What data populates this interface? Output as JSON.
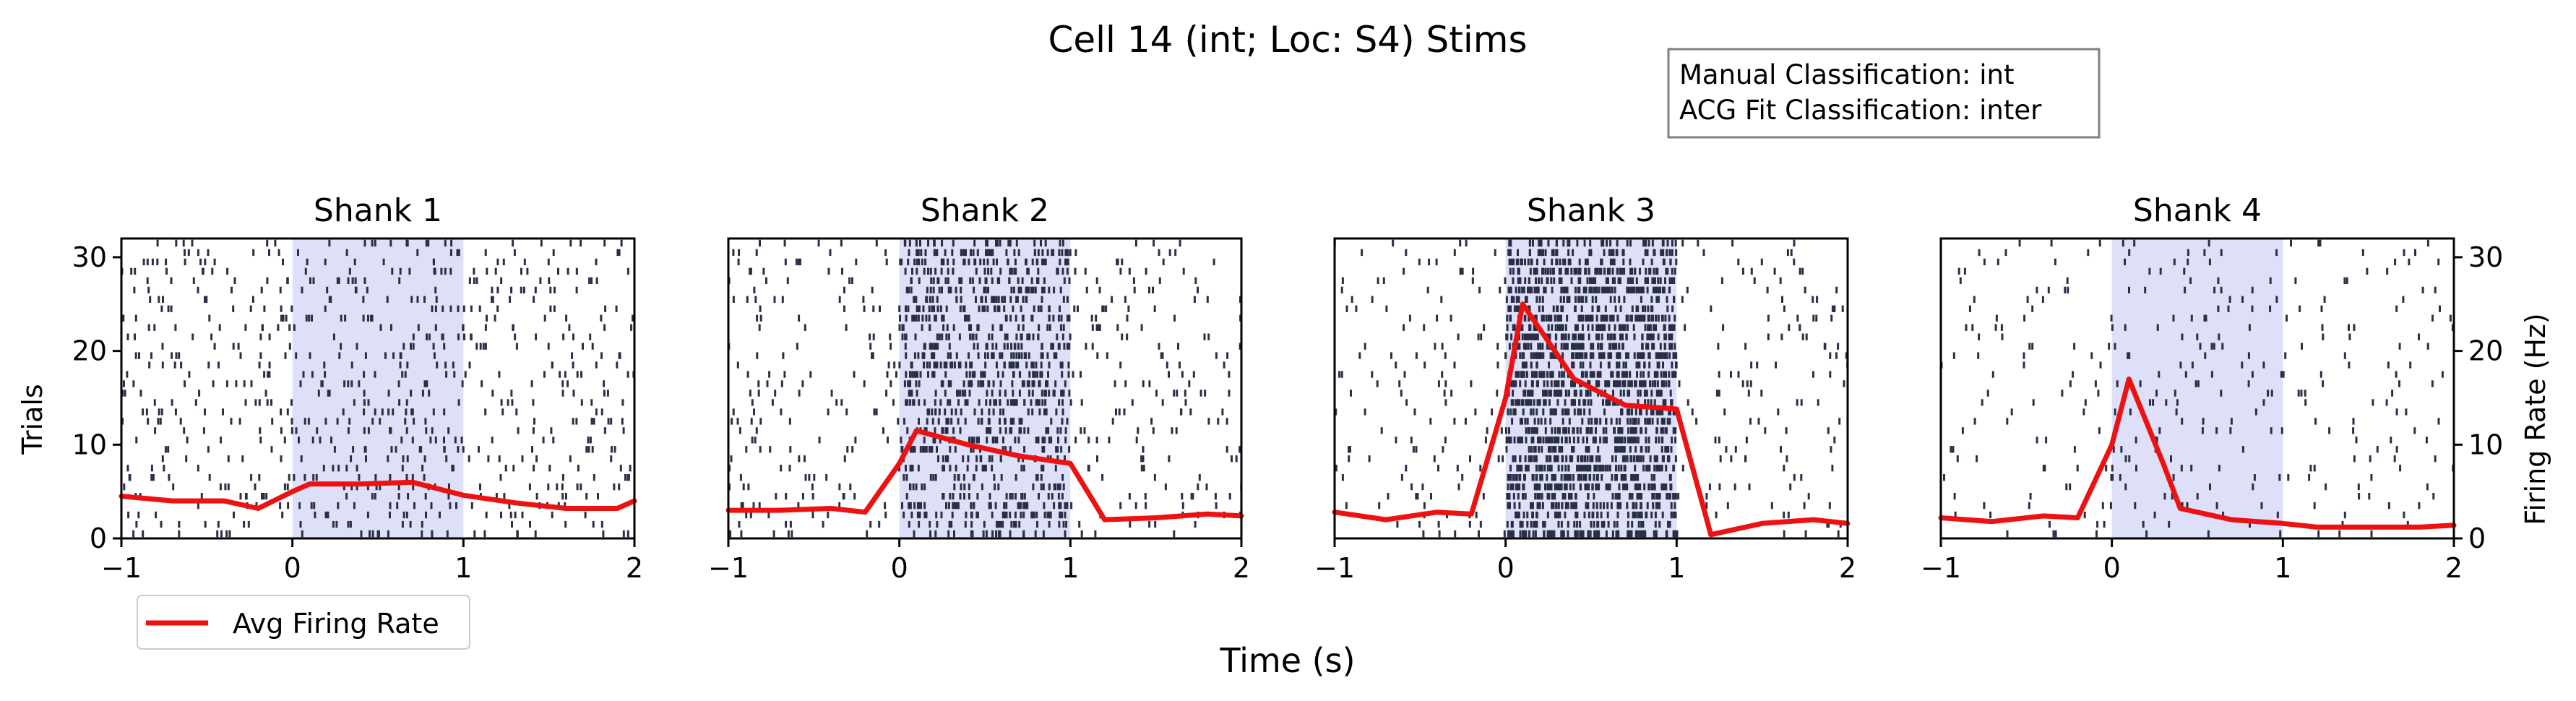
{
  "figure": {
    "title": "Cell 14 (int; Loc: S4) Stims",
    "xlabel": "Time (s)",
    "ylabel_left": "Trials",
    "ylabel_right": "Firing Rate (Hz)",
    "info_box": {
      "line1": "Manual Classification: int",
      "line2": "ACG Fit Classification: inter"
    },
    "legend": {
      "label": "Avg Firing Rate",
      "color": "#ee1111",
      "placement": "below-left"
    }
  },
  "colors": {
    "raster": "#2b2f45",
    "stim_shade": "#dde0f8",
    "rate_line": "#ee1111"
  },
  "chart_data": {
    "type": "raster+line",
    "xlim": [
      -1,
      2
    ],
    "ylim_trials": [
      0,
      32
    ],
    "ylim_rate": [
      0,
      32
    ],
    "xticks": [
      "−1",
      "0",
      "1",
      "2"
    ],
    "yticks": [
      "0",
      "10",
      "20",
      "30"
    ],
    "n_trials": 32,
    "panels": [
      {
        "title": "Shank 1",
        "stim_window": [
          0,
          1
        ],
        "background_rate": 7,
        "stim_rate": 9,
        "rate_x": [
          -1,
          -0.7,
          -0.4,
          -0.2,
          0,
          0.1,
          0.4,
          0.7,
          1,
          1.3,
          1.6,
          1.9,
          2
        ],
        "rate_y": [
          4.5,
          4.0,
          4.0,
          3.2,
          5.0,
          5.8,
          5.8,
          6.0,
          4.6,
          3.8,
          3.2,
          3.2,
          4.0
        ]
      },
      {
        "title": "Shank 2",
        "stim_window": [
          0,
          1
        ],
        "background_rate": 5,
        "stim_rate": 30,
        "rate_x": [
          -1,
          -0.7,
          -0.4,
          -0.2,
          0,
          0.1,
          0.4,
          0.7,
          1,
          1.2,
          1.5,
          1.8,
          2
        ],
        "rate_y": [
          3.0,
          3.0,
          3.2,
          2.8,
          8.0,
          11.5,
          10.0,
          8.8,
          8.0,
          2.0,
          2.2,
          2.6,
          2.4
        ]
      },
      {
        "title": "Shank 3",
        "stim_window": [
          0,
          1
        ],
        "background_rate": 4,
        "stim_rate": 60,
        "rate_x": [
          -1,
          -0.7,
          -0.4,
          -0.2,
          0,
          0.1,
          0.4,
          0.7,
          1,
          1.2,
          1.5,
          1.8,
          2
        ],
        "rate_y": [
          2.8,
          2.0,
          2.8,
          2.6,
          15.0,
          25.0,
          17.0,
          14.2,
          13.8,
          0.4,
          1.6,
          2.0,
          1.6
        ]
      },
      {
        "title": "Shank 4",
        "stim_window": [
          0,
          1
        ],
        "background_rate": 3,
        "stim_rate": 4,
        "rate_x": [
          -1,
          -0.7,
          -0.4,
          -0.2,
          0,
          0.1,
          0.3,
          0.4,
          0.7,
          1,
          1.2,
          1.5,
          1.8,
          2
        ],
        "rate_y": [
          2.2,
          1.8,
          2.4,
          2.2,
          10.0,
          17.0,
          8.0,
          3.2,
          2.0,
          1.6,
          1.2,
          1.2,
          1.2,
          1.4
        ]
      }
    ]
  }
}
